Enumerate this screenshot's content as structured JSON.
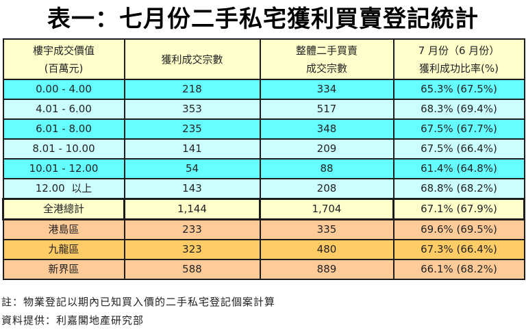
{
  "title": "表一：七月份二手私宅獲利買賣登記統計",
  "table": {
    "headers": [
      {
        "line1": "樓宇成交價值",
        "line2": "(百萬元)"
      },
      {
        "line1": "獲利成交宗數",
        "line2": ""
      },
      {
        "line1": "整體二手買賣",
        "line2": "成交宗數"
      },
      {
        "line1": "7 月份（6 月份）",
        "line2": "獲利成功比率(%)"
      }
    ],
    "rows": [
      {
        "range": "0.00 - 4.00",
        "profit_deals": "218",
        "total_deals": "334",
        "ratio": "65.3% (67.5%)",
        "color": "#66FFFF"
      },
      {
        "range": "4.01 - 6.00",
        "profit_deals": "353",
        "total_deals": "517",
        "ratio": "68.3% (69.4%)",
        "color": "#CCFFFF"
      },
      {
        "range": "6.01 - 8.00",
        "profit_deals": "235",
        "total_deals": "348",
        "ratio": "67.5% (67.7%)",
        "color": "#66FFFF"
      },
      {
        "range": "8.01 - 10.00",
        "profit_deals": "141",
        "total_deals": "209",
        "ratio": "67.5% (66.4%)",
        "color": "#CCFFFF"
      },
      {
        "range": "10.01 - 12.00",
        "profit_deals": "54",
        "total_deals": "88",
        "ratio": "61.4% (64.8%)",
        "color": "#66FFFF"
      },
      {
        "range": "12.00  以上",
        "profit_deals": "143",
        "total_deals": "208",
        "ratio": "68.8% (68.2%)",
        "color": "#CCFFFF"
      }
    ],
    "total": {
      "label": "全港總計",
      "profit_deals": "1,144",
      "total_deals": "1,704",
      "ratio": "67.1% (67.9%)",
      "color": "#FFFFCC"
    },
    "regions": [
      {
        "label": "港島區",
        "profit_deals": "233",
        "total_deals": "335",
        "ratio": "69.6% (69.5%)",
        "color": "#FFCC99"
      },
      {
        "label": "九龍區",
        "profit_deals": "323",
        "total_deals": "480",
        "ratio": "67.3% (66.4%)",
        "color": "#FFCC66"
      },
      {
        "label": "新界區",
        "profit_deals": "588",
        "total_deals": "889",
        "ratio": "66.1% (68.2%)",
        "color": "#FFCC99"
      }
    ]
  },
  "notes": {
    "note": "註：物業登記以期內已知買入價的二手私宅登記個案計算",
    "source": "資料提供：利嘉閣地產研究部"
  }
}
